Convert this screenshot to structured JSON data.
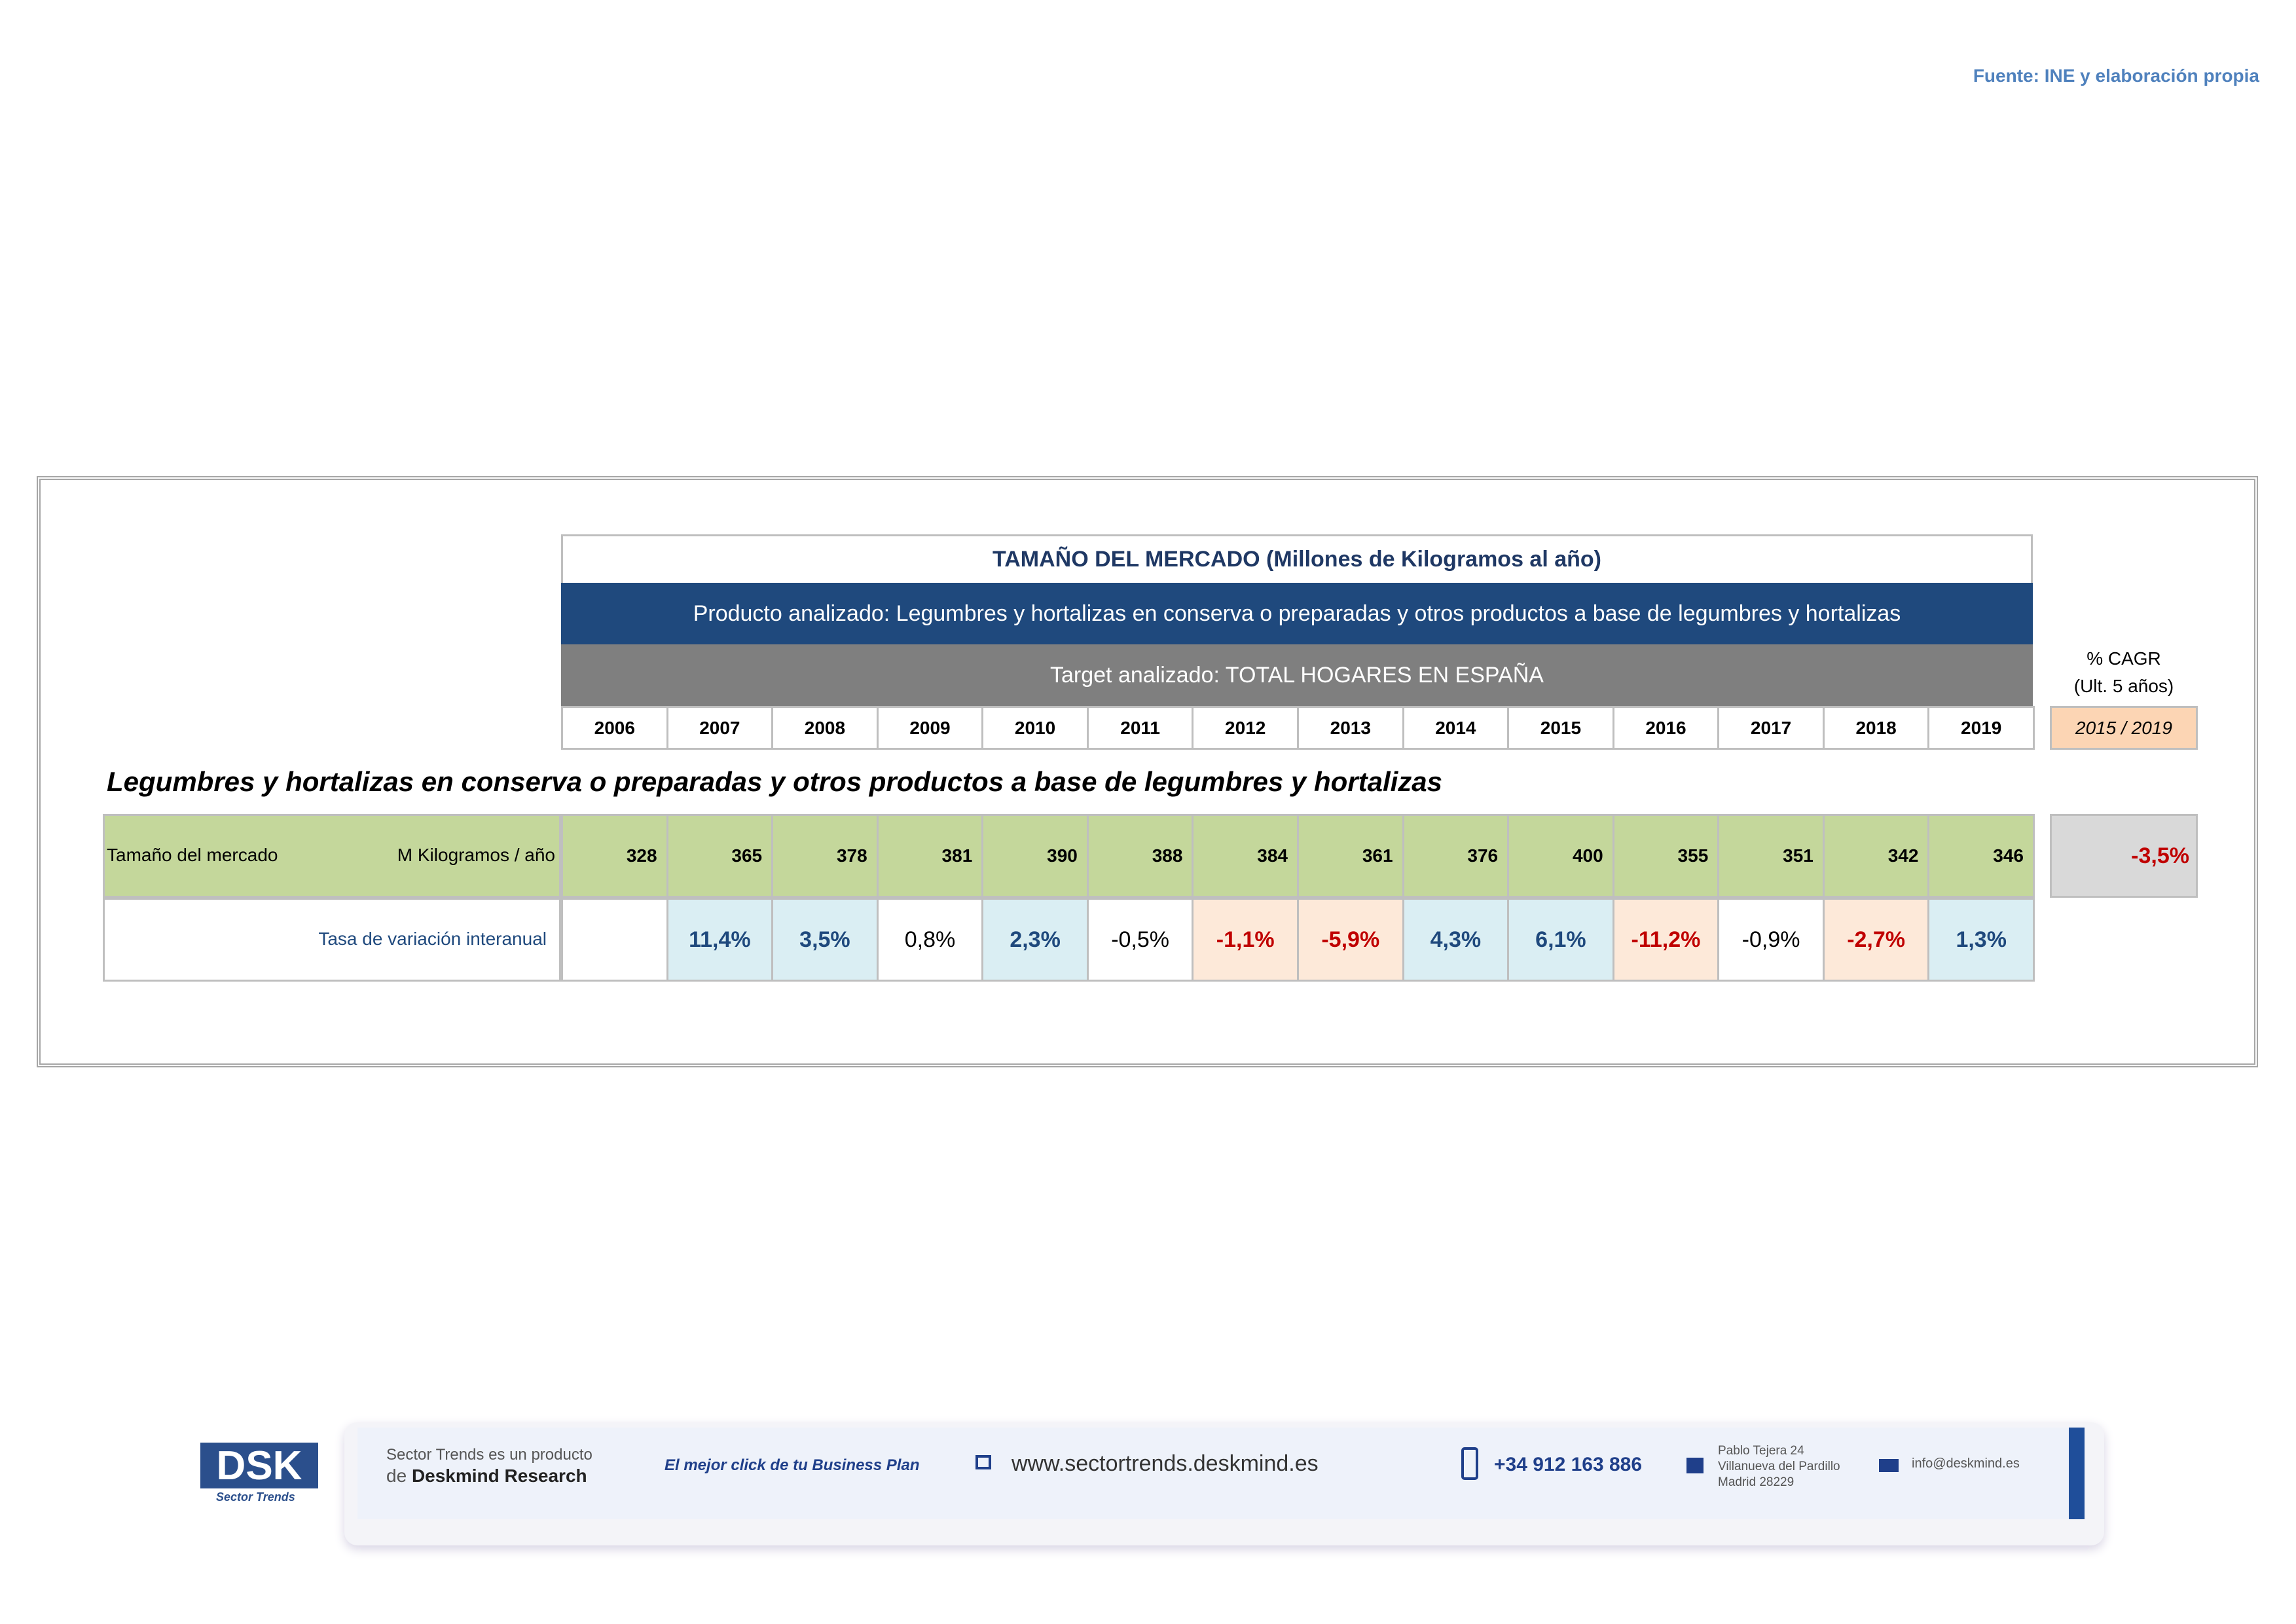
{
  "source": "Fuente: INE y elaboración propia",
  "table": {
    "title": "TAMAÑO DEL MERCADO (Millones de Kilogramos al año)",
    "product": "Producto analizado: Legumbres y hortalizas en conserva o preparadas y otros productos a base de legumbres y hortalizas",
    "target": "Target analizado: TOTAL HOGARES EN ESPAÑA",
    "years": [
      "2006",
      "2007",
      "2008",
      "2009",
      "2010",
      "2011",
      "2012",
      "2013",
      "2014",
      "2015",
      "2016",
      "2017",
      "2018",
      "2019"
    ],
    "cagr_header": [
      "% CAGR",
      "(Ult. 5 años)"
    ],
    "cagr_period": "2015 / 2019",
    "section_title": "Legumbres y hortalizas en conserva o preparadas y otros productos a base de legumbres y hortalizas",
    "market_label": "Tamaño del mercado",
    "market_unit": "M Kilogramos / año",
    "market_values": [
      328,
      365,
      378,
      381,
      390,
      388,
      384,
      361,
      376,
      400,
      355,
      351,
      342,
      346
    ],
    "cagr_value": "-3,5%",
    "variation_label": "Tasa de variación interanual",
    "variation_values": [
      null,
      "11,4%",
      "3,5%",
      "0,8%",
      "2,3%",
      "-0,5%",
      "-1,1%",
      "-5,9%",
      "4,3%",
      "6,1%",
      "-11,2%",
      "-0,9%",
      "-2,7%",
      "1,3%"
    ]
  },
  "footer": {
    "logo": "DSK",
    "logo_sub": "Sector Trends",
    "line1": "Sector Trends es un producto",
    "line2_prefix": "de",
    "line2_brand": "Deskmind Research",
    "slogan": "El mejor click de tu Business Plan",
    "web": "www.sectortrends.deskmind.es",
    "phone": "+34 912 163 886",
    "address": [
      "Pablo Tejera 24",
      "Villanueva del Pardillo",
      "Madrid 28229"
    ],
    "email": "info@deskmind.es"
  }
}
